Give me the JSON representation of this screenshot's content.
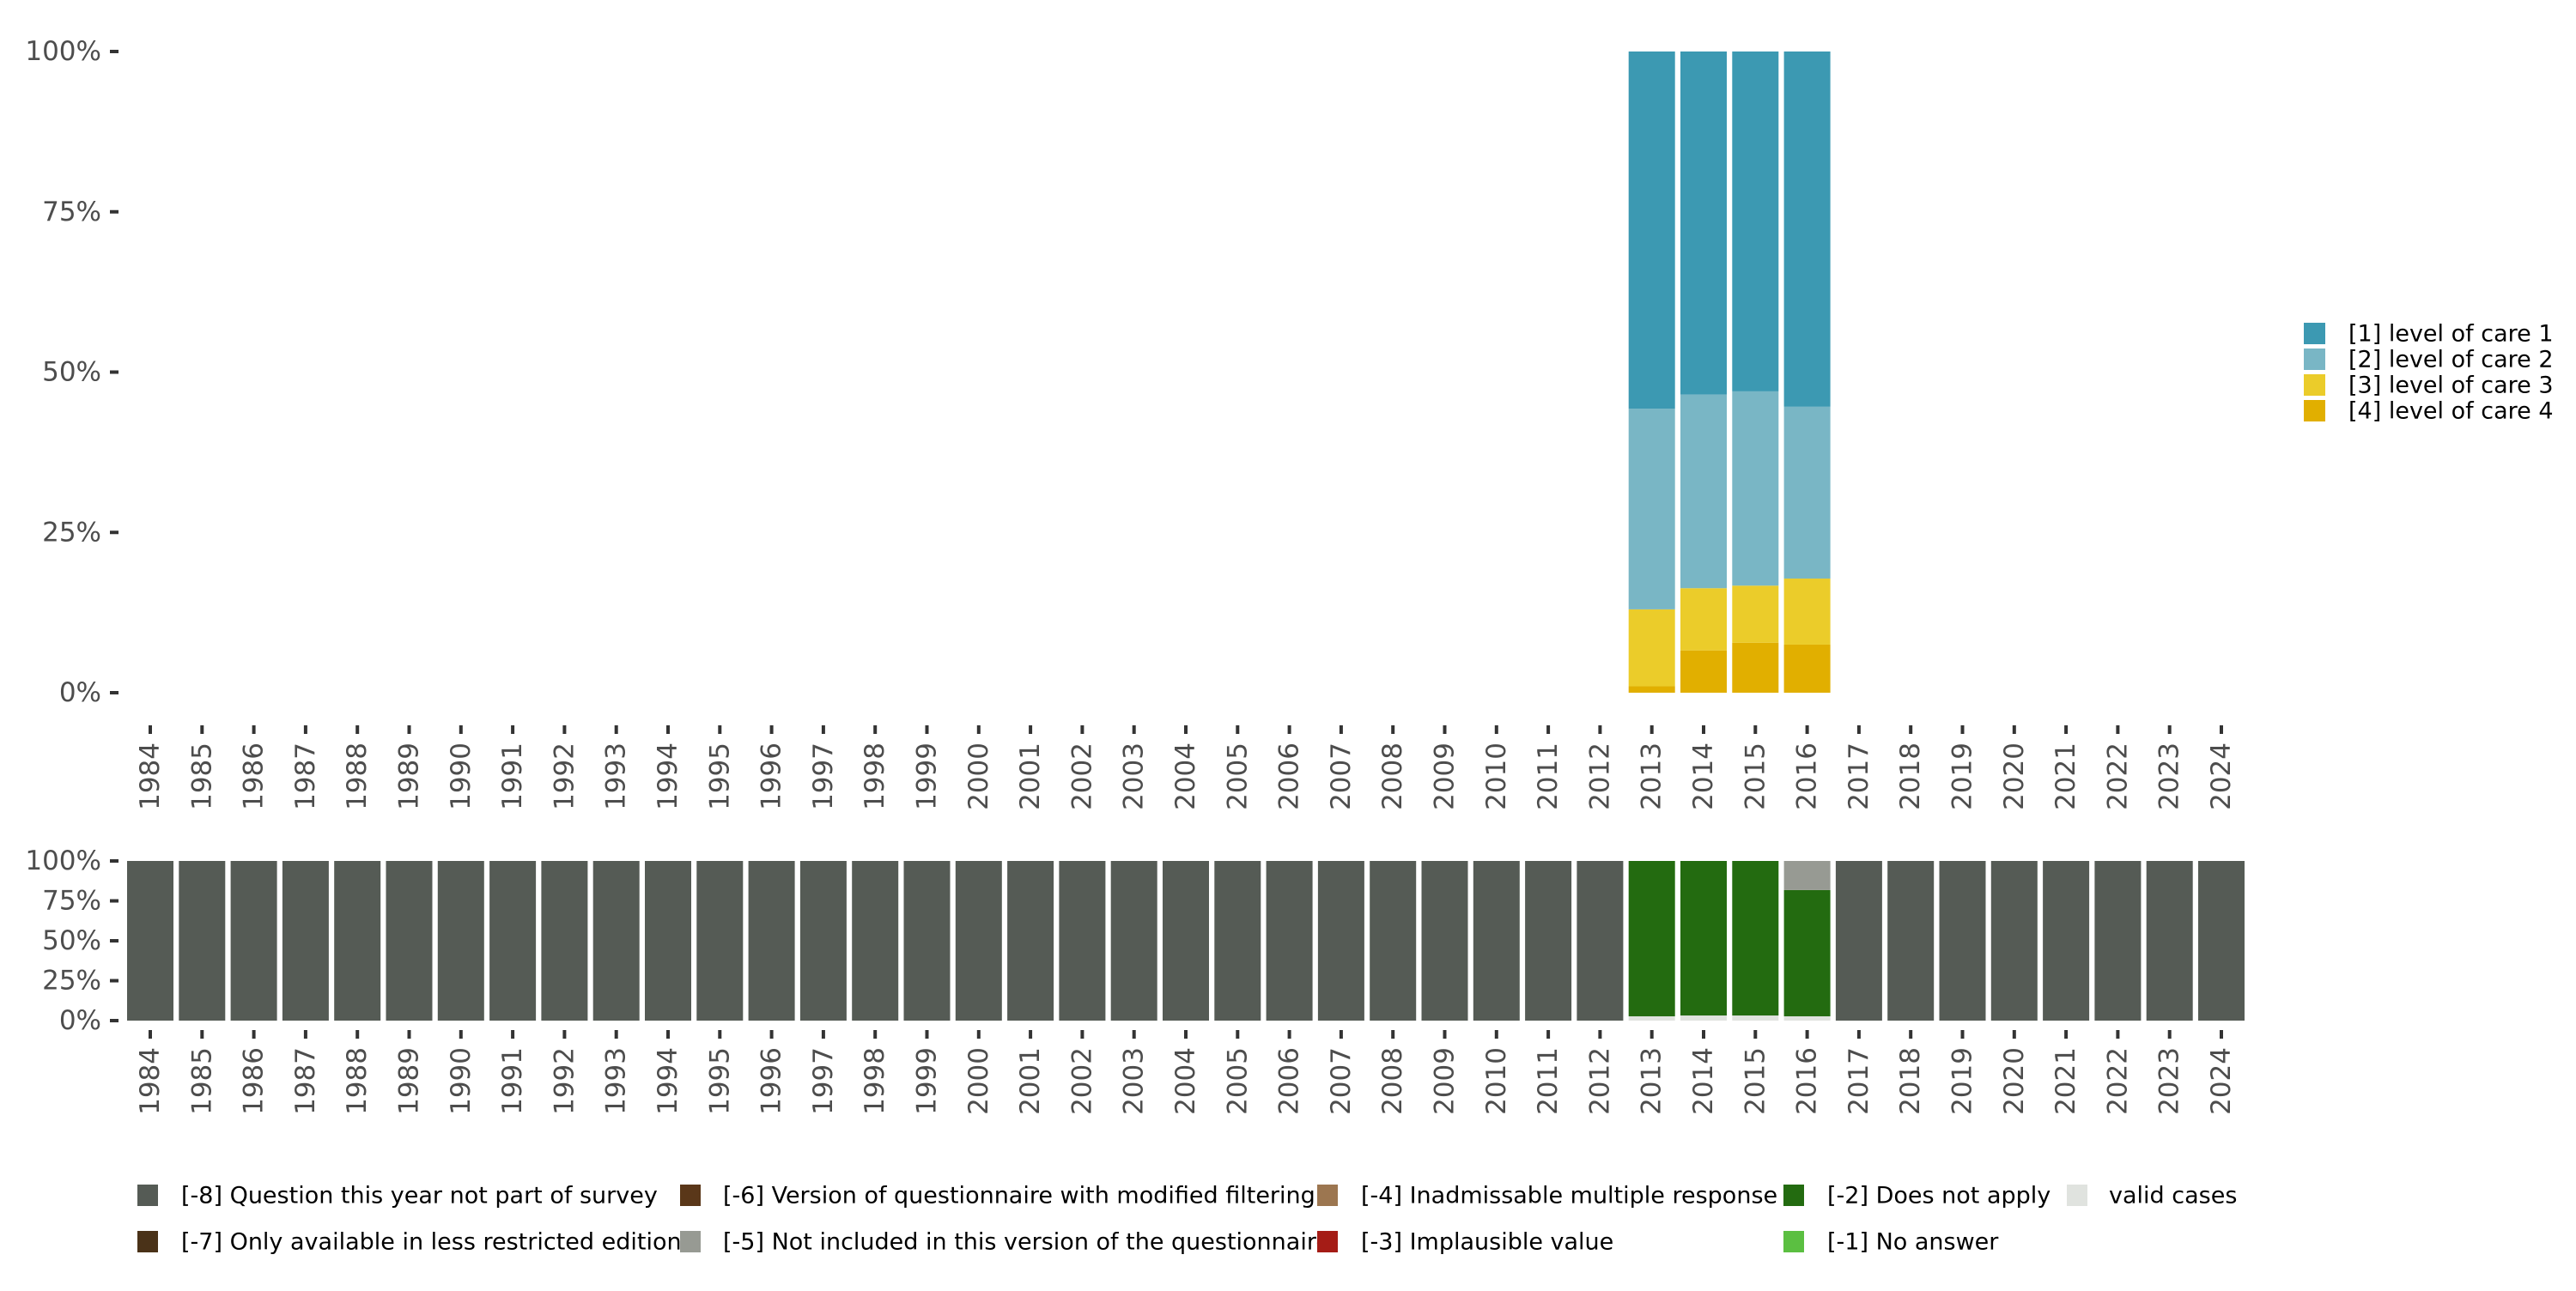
{
  "chart_data": [
    {
      "type": "bar",
      "stacked": true,
      "title": "",
      "xlabel": "",
      "ylabel": "",
      "ylim": [
        0,
        100
      ],
      "yticks": [
        "0%",
        "25%",
        "50%",
        "75%",
        "100%"
      ],
      "categories": [
        "1984",
        "1985",
        "1986",
        "1987",
        "1988",
        "1989",
        "1990",
        "1991",
        "1992",
        "1993",
        "1994",
        "1995",
        "1996",
        "1997",
        "1998",
        "1999",
        "2000",
        "2001",
        "2002",
        "2003",
        "2004",
        "2005",
        "2006",
        "2007",
        "2008",
        "2009",
        "2010",
        "2011",
        "2012",
        "2013",
        "2014",
        "2015",
        "2016",
        "2017",
        "2018",
        "2019",
        "2020",
        "2021",
        "2022",
        "2023",
        "2024"
      ],
      "legend_position": "right",
      "series": [
        {
          "name": "[4] level of care 4",
          "color": "#e1af00",
          "values": {
            "2013": 1.0,
            "2014": 6.6,
            "2015": 7.8,
            "2016": 7.5
          }
        },
        {
          "name": "[3] level of care 3",
          "color": "#ebcc2a",
          "values": {
            "2013": 12.0,
            "2014": 9.7,
            "2015": 8.9,
            "2016": 10.3
          }
        },
        {
          "name": "[2] level of care 2",
          "color": "#79b6c5",
          "values": {
            "2013": 31.3,
            "2014": 30.2,
            "2015": 30.3,
            "2016": 26.8
          }
        },
        {
          "name": "[1] level of care 1",
          "color": "#3c99b2",
          "values": {
            "2013": 55.7,
            "2014": 53.5,
            "2015": 53.0,
            "2016": 55.4
          }
        }
      ],
      "legend": [
        "[1] level of care 1",
        "[2] level of care 2",
        "[3] level of care 3",
        "[4] level of care 4"
      ]
    },
    {
      "type": "bar",
      "stacked": true,
      "title": "",
      "xlabel": "",
      "ylabel": "",
      "ylim": [
        0,
        100
      ],
      "yticks": [
        "0%",
        "25%",
        "50%",
        "75%",
        "100%"
      ],
      "categories": [
        "1984",
        "1985",
        "1986",
        "1987",
        "1988",
        "1989",
        "1990",
        "1991",
        "1992",
        "1993",
        "1994",
        "1995",
        "1996",
        "1997",
        "1998",
        "1999",
        "2000",
        "2001",
        "2002",
        "2003",
        "2004",
        "2005",
        "2006",
        "2007",
        "2008",
        "2009",
        "2010",
        "2011",
        "2012",
        "2013",
        "2014",
        "2015",
        "2016",
        "2017",
        "2018",
        "2019",
        "2020",
        "2021",
        "2022",
        "2023",
        "2024"
      ],
      "legend_position": "bottom",
      "series": [
        {
          "name": "valid cases",
          "color": "#e0e3df",
          "values": {
            "2013": 2.7,
            "2014": 3.2,
            "2015": 3.2,
            "2016": 2.7
          }
        },
        {
          "name": "[-2] Does not apply",
          "color": "#236b10",
          "values": {
            "2013": 97.3,
            "2014": 96.8,
            "2015": 96.8,
            "2016": 79.1
          }
        },
        {
          "name": "[-5] Not included in this version of the questionnaire",
          "color": "#979a93",
          "values": {
            "2016": 18.2
          }
        },
        {
          "name": "[-8] Question this year not part of survey",
          "color": "#555b55",
          "values": "100 for all years except 2013-2016",
          "all_other_years": 100
        }
      ],
      "legend": [
        {
          "label": "[-8] Question this year not part of survey",
          "color": "#555b55"
        },
        {
          "label": "[-7] Only available in less restricted edition",
          "color": "#4a3218"
        },
        {
          "label": "[-6] Version of questionnaire with modified filtering",
          "color": "#5a3719"
        },
        {
          "label": "[-5] Not included in this version of the questionnaire",
          "color": "#979a93"
        },
        {
          "label": "[-4] Inadmissable multiple response",
          "color": "#9c7650"
        },
        {
          "label": "[-3] Implausible value",
          "color": "#a51c16"
        },
        {
          "label": "[-2] Does not apply",
          "color": "#236b10"
        },
        {
          "label": "[-1] No answer",
          "color": "#5bbf41"
        },
        {
          "label": "valid cases",
          "color": "#e0e3df"
        }
      ]
    }
  ]
}
